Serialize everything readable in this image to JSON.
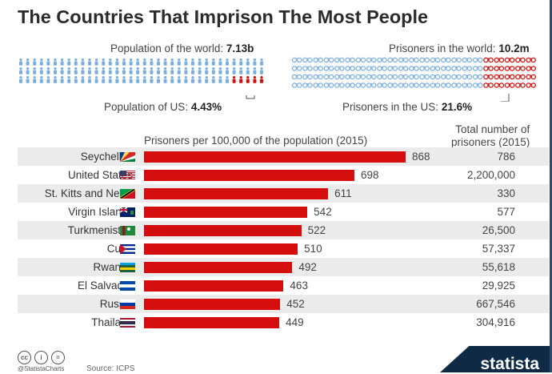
{
  "title": "The Countries That Imprison The Most People",
  "population": {
    "label": "Population of the world:",
    "value": "7.13b",
    "us_label": "Population of US:",
    "us_value": "4.43%"
  },
  "prisoners": {
    "label": "Prisoners in the world:",
    "value": "10.2m",
    "us_label": "Prisoners in the US:",
    "us_value": "21.6%"
  },
  "column_headers": {
    "rate": "Prisoners per 100,000 of the population (2015)",
    "total_line1": "Total number of",
    "total_line2": "prisoners  (2015)"
  },
  "colors": {
    "bar": "#d40e0e",
    "population_icon": "#7aaee0",
    "highlight_icon": "#d40e0e",
    "row_alt": "#ebebeb",
    "brand": "#0f2a44"
  },
  "chart_data": {
    "type": "bar",
    "orientation": "horizontal",
    "title": "The Countries That Imprison The Most People",
    "xlabel": "Prisoners per 100,000 of the population (2015)",
    "categories": [
      "Seychelles",
      "United States",
      "St. Kitts and Nevis",
      "Virgin Islands",
      "Turkmenistan",
      "Cuba",
      "Rwanda",
      "El Salvador",
      "Russia",
      "Thailand"
    ],
    "values": [
      868,
      698,
      611,
      542,
      522,
      510,
      492,
      463,
      452,
      449
    ],
    "totals": [
      "786",
      "2,200,000",
      "330",
      "577",
      "26,500",
      "57,337",
      "55,618",
      "29,925",
      "667,546",
      "304,916"
    ],
    "flags": [
      "seychelles-flag",
      "usa-flag",
      "st-kitts-flag",
      "virgin-islands-flag",
      "turkmenistan-flag",
      "cuba-flag",
      "rwanda-flag",
      "el-salvador-flag",
      "russia-flag",
      "thailand-flag"
    ],
    "xlim": [
      0,
      868
    ],
    "grid": false
  },
  "footer": {
    "cc_icons": [
      "cc-icon",
      "by-icon",
      "nd-icon"
    ],
    "cc_text": [
      "cc",
      "i",
      "="
    ],
    "handle": "@StatistaCharts",
    "source": "Source: ICPS",
    "brand": "statista"
  }
}
